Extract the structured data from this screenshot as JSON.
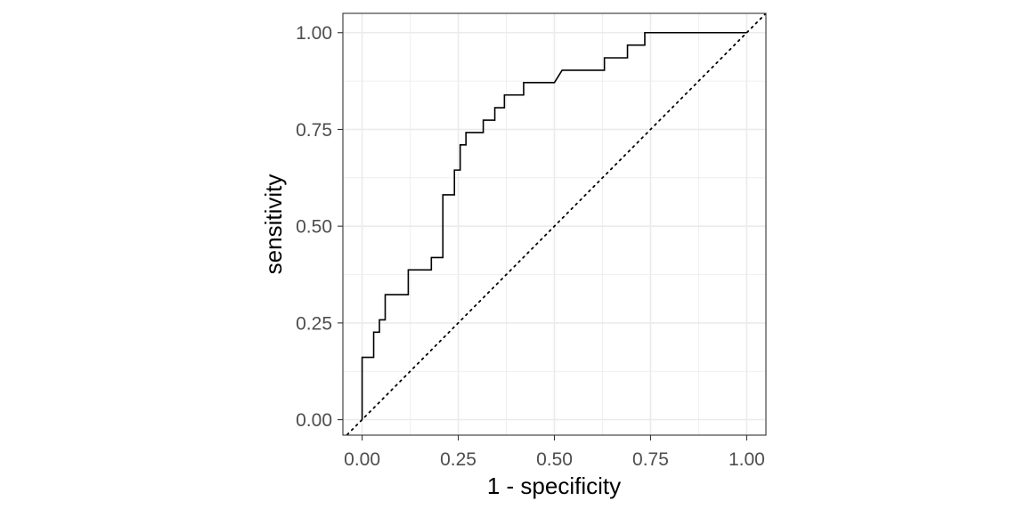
{
  "chart_data": {
    "type": "line",
    "title": "",
    "xlabel": "1 - specificity",
    "ylabel": "sensitivity",
    "xlim": [
      -0.05,
      1.05
    ],
    "ylim": [
      -0.04,
      1.05
    ],
    "xticks": [
      0.0,
      0.25,
      0.5,
      0.75,
      1.0
    ],
    "yticks": [
      0.0,
      0.25,
      0.5,
      0.75,
      1.0
    ],
    "xtick_labels": [
      "0.00",
      "0.25",
      "0.50",
      "0.75",
      "1.00"
    ],
    "ytick_labels": [
      "0.00",
      "0.25",
      "0.50",
      "0.75",
      "1.00"
    ],
    "grid": true,
    "colors": {
      "roc": "#000000",
      "diagonal": "#000000",
      "grid": "#ebebeb",
      "panel_border": "#333333",
      "tick_text": "#4d4d4d",
      "axis_title": "#000000"
    },
    "series": [
      {
        "style": "step",
        "x": [
          0.0,
          0.0,
          0.03,
          0.03,
          0.045,
          0.045,
          0.06,
          0.06,
          0.12,
          0.12,
          0.18,
          0.18,
          0.21,
          0.21,
          0.24,
          0.24,
          0.255,
          0.255,
          0.27,
          0.27,
          0.315,
          0.315,
          0.345,
          0.345,
          0.37,
          0.37,
          0.42,
          0.42,
          0.5,
          0.52,
          0.63,
          0.63,
          0.69,
          0.69,
          0.72,
          0.72,
          0.735,
          0.735,
          1.0
        ],
        "y": [
          0.0,
          0.161,
          0.161,
          0.226,
          0.226,
          0.258,
          0.258,
          0.323,
          0.323,
          0.387,
          0.387,
          0.419,
          0.419,
          0.581,
          0.581,
          0.645,
          0.645,
          0.71,
          0.71,
          0.742,
          0.742,
          0.774,
          0.774,
          0.806,
          0.806,
          0.839,
          0.839,
          0.871,
          0.871,
          0.903,
          0.903,
          0.935,
          0.935,
          0.968,
          0.968,
          0.968,
          0.968,
          1.0,
          1.0
        ]
      },
      {
        "style": "dotted",
        "x": [
          -0.05,
          1.05
        ],
        "y": [
          -0.05,
          1.05
        ]
      }
    ]
  }
}
